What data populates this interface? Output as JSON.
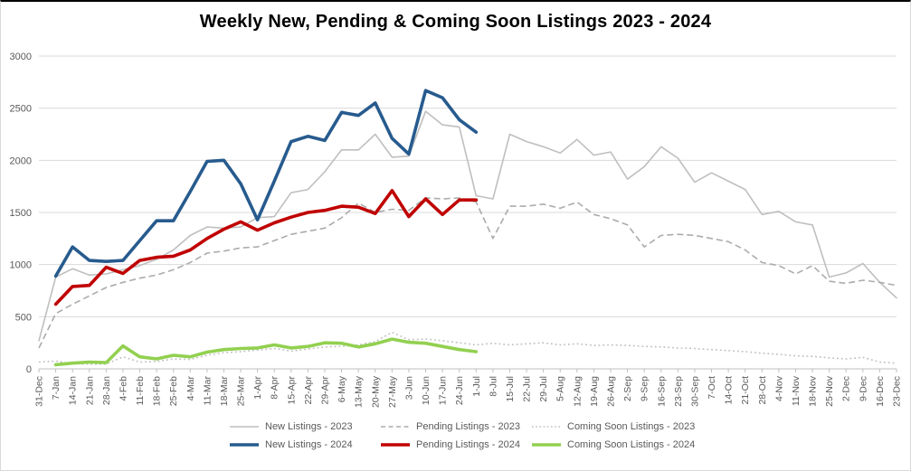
{
  "title": "Weekly New, Pending & Coming Soon Listings 2023 - 2024",
  "chart_data": {
    "type": "line",
    "title": "Weekly New, Pending & Coming Soon Listings 2023 - 2024",
    "legend_position": "bottom",
    "grid": true,
    "grid_color": "#d9d9d9",
    "axis_line_color": "#bfbfbf",
    "axis_text_color": "#595959",
    "y_axis": {
      "min": 0,
      "max": 3000,
      "step": 500,
      "tick_labels": [
        "0",
        "500",
        "1000",
        "1500",
        "2000",
        "2500",
        "3000"
      ]
    },
    "categories": [
      "31-Dec",
      "7-Jan",
      "14-Jan",
      "21-Jan",
      "28-Jan",
      "4-Feb",
      "11-Feb",
      "18-Feb",
      "25-Feb",
      "4-Mar",
      "11-Mar",
      "18-Mar",
      "25-Mar",
      "1-Apr",
      "8-Apr",
      "15-Apr",
      "22-Apr",
      "29-Apr",
      "6-May",
      "13-May",
      "20-May",
      "27-May",
      "3-Jun",
      "10-Jun",
      "17-Jun",
      "24-Jun",
      "1-Jul",
      "8-Jul",
      "15-Jul",
      "22-Jul",
      "29-Jul",
      "5-Aug",
      "12-Aug",
      "19-Aug",
      "26-Aug",
      "2-Sep",
      "9-Sep",
      "16-Sep",
      "23-Sep",
      "30-Sep",
      "7-Oct",
      "14-Oct",
      "21-Oct",
      "28-Oct",
      "4-Nov",
      "11-Nov",
      "18-Nov",
      "25-Nov",
      "2-Dec",
      "9-Dec",
      "16-Dec",
      "23-Dec"
    ],
    "series": [
      {
        "name": "New Listings - 2023",
        "color": "#bfbfbf",
        "width": 1.6,
        "dash": null,
        "values": [
          270,
          880,
          960,
          900,
          910,
          950,
          990,
          1050,
          1140,
          1280,
          1360,
          1350,
          1360,
          1450,
          1460,
          1690,
          1720,
          1890,
          2100,
          2100,
          2250,
          2030,
          2040,
          2470,
          2340,
          2320,
          1660,
          1630,
          2250,
          2180,
          2130,
          2070,
          2200,
          2050,
          2080,
          1820,
          1940,
          2130,
          2020,
          1790,
          1880,
          1800,
          1720,
          1480,
          1510,
          1410,
          1380,
          880,
          920,
          1010,
          830,
          680
        ]
      },
      {
        "name": "Pending Listings - 2023",
        "color": "#ababab",
        "width": 1.6,
        "dash": "7 4",
        "values": [
          200,
          530,
          620,
          700,
          780,
          830,
          870,
          900,
          950,
          1020,
          1110,
          1130,
          1160,
          1170,
          1230,
          1290,
          1320,
          1350,
          1450,
          1590,
          1500,
          1530,
          1520,
          1640,
          1630,
          1640,
          1600,
          1250,
          1560,
          1560,
          1580,
          1540,
          1600,
          1480,
          1440,
          1380,
          1170,
          1280,
          1290,
          1280,
          1250,
          1220,
          1140,
          1020,
          990,
          910,
          990,
          840,
          820,
          850,
          830,
          800
        ]
      },
      {
        "name": "Coming Soon Listings - 2023",
        "color": "#bfbfbf",
        "width": 1.6,
        "dash": "1.8 3",
        "values": [
          65,
          75,
          50,
          45,
          45,
          115,
          65,
          70,
          95,
          90,
          130,
          155,
          165,
          180,
          195,
          170,
          190,
          210,
          215,
          230,
          260,
          350,
          280,
          285,
          270,
          250,
          230,
          245,
          230,
          240,
          250,
          230,
          240,
          225,
          230,
          225,
          215,
          210,
          200,
          195,
          185,
          175,
          165,
          150,
          140,
          125,
          120,
          105,
          95,
          110,
          65,
          55
        ]
      },
      {
        "name": "New Listings - 2024",
        "color": "#275b8e",
        "width": 3.6,
        "dash": null,
        "values": [
          null,
          890,
          1170,
          1040,
          1030,
          1040,
          1230,
          1420,
          1420,
          1700,
          1990,
          2000,
          1775,
          1430,
          1800,
          2180,
          2230,
          2190,
          2460,
          2430,
          2550,
          2210,
          2060,
          2670,
          2600,
          2390,
          2270,
          null,
          null,
          null,
          null,
          null,
          null,
          null,
          null,
          null,
          null,
          null,
          null,
          null,
          null,
          null,
          null,
          null,
          null,
          null,
          null,
          null,
          null,
          null,
          null,
          null
        ]
      },
      {
        "name": "Pending Listings - 2024",
        "color": "#c00000",
        "width": 3.6,
        "dash": null,
        "values": [
          null,
          620,
          790,
          800,
          975,
          915,
          1040,
          1070,
          1080,
          1140,
          1250,
          1340,
          1410,
          1330,
          1400,
          1455,
          1500,
          1520,
          1560,
          1550,
          1490,
          1710,
          1460,
          1630,
          1480,
          1620,
          1620,
          null,
          null,
          null,
          null,
          null,
          null,
          null,
          null,
          null,
          null,
          null,
          null,
          null,
          null,
          null,
          null,
          null,
          null,
          null,
          null,
          null,
          null,
          null,
          null,
          null
        ]
      },
      {
        "name": "Coming Soon Listings - 2024",
        "color": "#92d050",
        "width": 3.6,
        "dash": null,
        "values": [
          null,
          40,
          55,
          65,
          60,
          220,
          115,
          95,
          130,
          115,
          160,
          185,
          195,
          200,
          230,
          200,
          215,
          250,
          245,
          210,
          240,
          285,
          255,
          245,
          215,
          185,
          165,
          null,
          null,
          null,
          null,
          null,
          null,
          null,
          null,
          null,
          null,
          null,
          null,
          null,
          null,
          null,
          null,
          null,
          null,
          null,
          null,
          null,
          null,
          null,
          null,
          null
        ]
      }
    ]
  }
}
